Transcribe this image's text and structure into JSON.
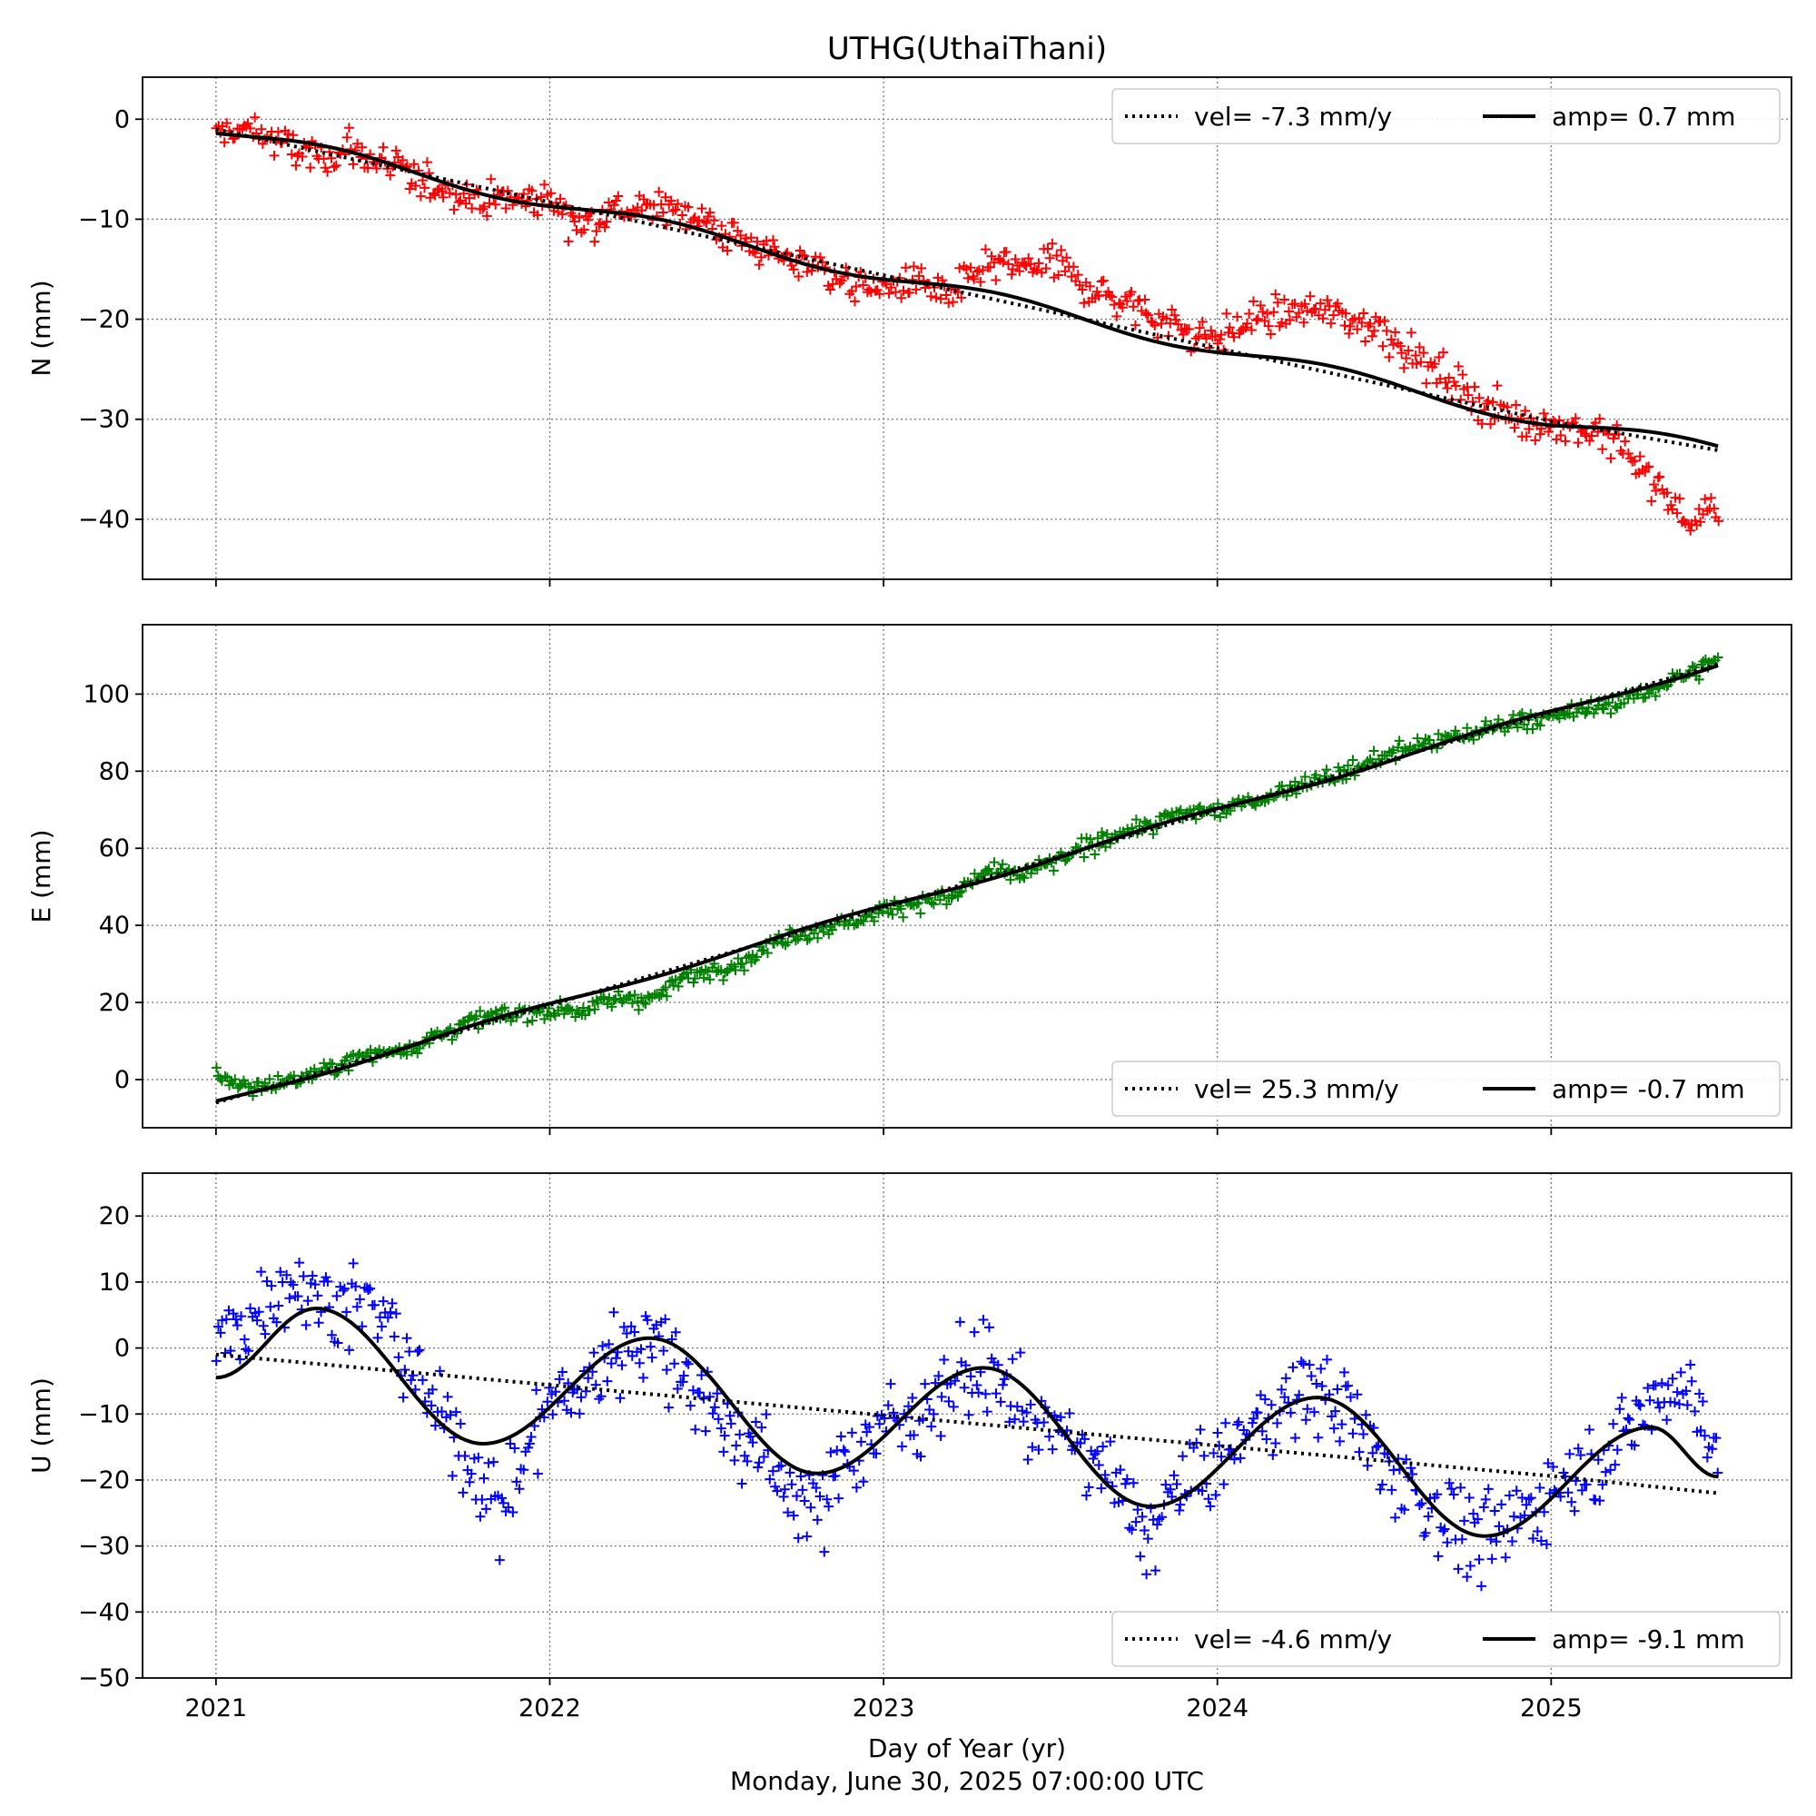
{
  "title": "UTHG(UthaiThani)",
  "xlabel": "Day of Year (yr)",
  "timestamp": "Monday, June 30, 2025 07:00:00 UTC",
  "chart_data": [
    {
      "type": "scatter",
      "component": "N",
      "ylabel": "N (mm)",
      "color": "#ff0000",
      "xlim": [
        2020.78,
        2025.72
      ],
      "ylim": [
        -46,
        4.2
      ],
      "yticks": [
        0,
        -10,
        -20,
        -30,
        -40
      ],
      "xticks": [
        2021,
        2022,
        2023,
        2024,
        2025
      ],
      "grid": true,
      "legend_position": "upper right",
      "vel_label": "vel= -7.3 mm/y",
      "amp_label": "amp= 0.7 mm",
      "velocity": -7.3,
      "amplitude": 0.7,
      "trend_points": [
        [
          2021.0,
          -1.0
        ],
        [
          2022.0,
          -8.3
        ],
        [
          2023.0,
          -15.6
        ],
        [
          2024.0,
          -22.9
        ],
        [
          2025.0,
          -30.2
        ],
        [
          2025.5,
          -33.1
        ]
      ],
      "observations": [
        [
          2021.0,
          -1.5
        ],
        [
          2021.1,
          -1.0
        ],
        [
          2021.2,
          -2.5
        ],
        [
          2021.3,
          -4.0
        ],
        [
          2021.4,
          -3.0
        ],
        [
          2021.5,
          -4.5
        ],
        [
          2021.6,
          -6.0
        ],
        [
          2021.7,
          -7.0
        ],
        [
          2021.8,
          -8.0
        ],
        [
          2022.0,
          -8.0
        ],
        [
          2022.1,
          -10.5
        ],
        [
          2022.2,
          -9.0
        ],
        [
          2022.3,
          -9.0
        ],
        [
          2022.4,
          -9.0
        ],
        [
          2022.5,
          -11.0
        ],
        [
          2022.6,
          -12.5
        ],
        [
          2022.7,
          -14.0
        ],
        [
          2022.8,
          -14.5
        ],
        [
          2022.9,
          -16.5
        ],
        [
          2023.0,
          -17.0
        ],
        [
          2023.1,
          -16.0
        ],
        [
          2023.2,
          -18.0
        ],
        [
          2023.3,
          -14.5
        ],
        [
          2023.4,
          -15.0
        ],
        [
          2023.5,
          -14.0
        ],
        [
          2023.6,
          -16.5
        ],
        [
          2023.7,
          -18.0
        ],
        [
          2023.8,
          -19.5
        ],
        [
          2023.9,
          -21.0
        ],
        [
          2024.0,
          -22.0
        ],
        [
          2024.1,
          -20.0
        ],
        [
          2024.2,
          -19.5
        ],
        [
          2024.3,
          -19.0
        ],
        [
          2024.4,
          -20.0
        ],
        [
          2024.5,
          -21.0
        ],
        [
          2024.6,
          -24.0
        ],
        [
          2024.7,
          -26.0
        ],
        [
          2024.8,
          -28.5
        ],
        [
          2024.9,
          -30.0
        ],
        [
          2025.0,
          -30.5
        ],
        [
          2025.1,
          -31.0
        ],
        [
          2025.2,
          -32.5
        ],
        [
          2025.3,
          -36.0
        ],
        [
          2025.4,
          -40.0
        ],
        [
          2025.5,
          -39.5
        ]
      ]
    },
    {
      "type": "scatter",
      "component": "E",
      "ylabel": "E (mm)",
      "color": "#008000",
      "xlim": [
        2020.78,
        2025.72
      ],
      "ylim": [
        -12.5,
        118
      ],
      "yticks": [
        100,
        80,
        60,
        40,
        20,
        0
      ],
      "xticks": [
        2021,
        2022,
        2023,
        2024,
        2025
      ],
      "grid": true,
      "legend_position": "lower right",
      "vel_label": "vel= 25.3 mm/y",
      "amp_label": "amp= -0.7 mm",
      "velocity": 25.3,
      "amplitude": -0.7,
      "trend_points": [
        [
          2021.0,
          -6.0
        ],
        [
          2022.0,
          19.3
        ],
        [
          2023.0,
          44.6
        ],
        [
          2024.0,
          69.9
        ],
        [
          2025.0,
          95.2
        ],
        [
          2025.5,
          107.8
        ]
      ],
      "observations": [
        [
          2021.0,
          1.5
        ],
        [
          2021.1,
          -2.0
        ],
        [
          2021.2,
          -1.0
        ],
        [
          2021.3,
          1.5
        ],
        [
          2021.4,
          5.0
        ],
        [
          2021.5,
          7.0
        ],
        [
          2021.6,
          9.0
        ],
        [
          2021.7,
          13.0
        ],
        [
          2021.8,
          16.0
        ],
        [
          2022.0,
          18.0
        ],
        [
          2022.1,
          18.0
        ],
        [
          2022.2,
          21.0
        ],
        [
          2022.3,
          21.0
        ],
        [
          2022.4,
          26.0
        ],
        [
          2022.5,
          29.0
        ],
        [
          2022.6,
          31.0
        ],
        [
          2022.7,
          37.0
        ],
        [
          2022.8,
          39.0
        ],
        [
          2022.9,
          41.0
        ],
        [
          2023.0,
          44.0
        ],
        [
          2023.1,
          46.0
        ],
        [
          2023.2,
          47.0
        ],
        [
          2023.3,
          54.0
        ],
        [
          2023.4,
          53.0
        ],
        [
          2023.5,
          56.0
        ],
        [
          2023.6,
          60.0
        ],
        [
          2023.7,
          64.0
        ],
        [
          2023.8,
          66.0
        ],
        [
          2023.9,
          69.0
        ],
        [
          2024.0,
          70.0
        ],
        [
          2024.1,
          72.0
        ],
        [
          2024.2,
          75.0
        ],
        [
          2024.3,
          78.0
        ],
        [
          2024.4,
          80.0
        ],
        [
          2024.5,
          84.0
        ],
        [
          2024.6,
          87.0
        ],
        [
          2024.7,
          88.0
        ],
        [
          2024.8,
          91.0
        ],
        [
          2024.9,
          93.0
        ],
        [
          2025.0,
          94.0
        ],
        [
          2025.1,
          96.0
        ],
        [
          2025.2,
          98.0
        ],
        [
          2025.3,
          101.0
        ],
        [
          2025.4,
          105.0
        ],
        [
          2025.5,
          109.0
        ]
      ]
    },
    {
      "type": "scatter",
      "component": "U",
      "ylabel": "U (mm)",
      "color": "#0000ff",
      "xlim": [
        2020.78,
        2025.72
      ],
      "ylim": [
        -50,
        26.5
      ],
      "yticks": [
        20,
        10,
        0,
        -10,
        -20,
        -30,
        -40,
        -50
      ],
      "xticks": [
        2021,
        2022,
        2023,
        2024,
        2025
      ],
      "grid": true,
      "legend_position": "lower right",
      "vel_label": "vel= -4.6 mm/y",
      "amp_label": "amp= -9.1 mm",
      "velocity": -4.6,
      "amplitude": -9.1,
      "trend_points": [
        [
          2021.0,
          -1.0
        ],
        [
          2022.0,
          -5.6
        ],
        [
          2023.0,
          -10.2
        ],
        [
          2024.0,
          -14.8
        ],
        [
          2025.0,
          -19.4
        ],
        [
          2025.5,
          -22.0
        ]
      ],
      "seasonal_extrema": [
        [
          2021.0,
          -4.5
        ],
        [
          2021.3,
          6.0
        ],
        [
          2021.8,
          -14.5
        ],
        [
          2022.3,
          1.5
        ],
        [
          2022.8,
          -19.0
        ],
        [
          2023.3,
          -3.0
        ],
        [
          2023.8,
          -24.0
        ],
        [
          2024.3,
          -7.5
        ],
        [
          2024.8,
          -28.5
        ],
        [
          2025.3,
          -12.0
        ],
        [
          2025.5,
          -19.5
        ]
      ],
      "observations": [
        [
          2021.0,
          0.0
        ],
        [
          2021.1,
          5.0
        ],
        [
          2021.2,
          10.0
        ],
        [
          2021.3,
          8.0
        ],
        [
          2021.4,
          7.0
        ],
        [
          2021.5,
          5.0
        ],
        [
          2021.6,
          -5.0
        ],
        [
          2021.7,
          -12.0
        ],
        [
          2021.8,
          -20.0
        ],
        [
          2021.85,
          -25.0
        ],
        [
          2022.0,
          -8.0
        ],
        [
          2022.1,
          -6.0
        ],
        [
          2022.2,
          0.0
        ],
        [
          2022.3,
          2.0
        ],
        [
          2022.4,
          -3.0
        ],
        [
          2022.5,
          -10.0
        ],
        [
          2022.6,
          -15.0
        ],
        [
          2022.7,
          -20.0
        ],
        [
          2022.8,
          -25.0
        ],
        [
          2022.9,
          -15.0
        ],
        [
          2023.0,
          -12.0
        ],
        [
          2023.1,
          -10.0
        ],
        [
          2023.2,
          -5.0
        ],
        [
          2023.3,
          -3.0
        ],
        [
          2023.4,
          -8.0
        ],
        [
          2023.5,
          -12.0
        ],
        [
          2023.6,
          -15.0
        ],
        [
          2023.7,
          -22.0
        ],
        [
          2023.8,
          -28.0
        ],
        [
          2023.9,
          -20.0
        ],
        [
          2024.0,
          -18.0
        ],
        [
          2024.1,
          -12.0
        ],
        [
          2024.2,
          -8.0
        ],
        [
          2024.3,
          -6.0
        ],
        [
          2024.4,
          -10.0
        ],
        [
          2024.5,
          -18.0
        ],
        [
          2024.6,
          -22.0
        ],
        [
          2024.7,
          -26.0
        ],
        [
          2024.8,
          -30.0
        ],
        [
          2024.9,
          -26.0
        ],
        [
          2025.0,
          -22.0
        ],
        [
          2025.1,
          -18.0
        ],
        [
          2025.2,
          -14.0
        ],
        [
          2025.3,
          -8.0
        ],
        [
          2025.4,
          -6.0
        ],
        [
          2025.5,
          -14.0
        ]
      ]
    }
  ]
}
